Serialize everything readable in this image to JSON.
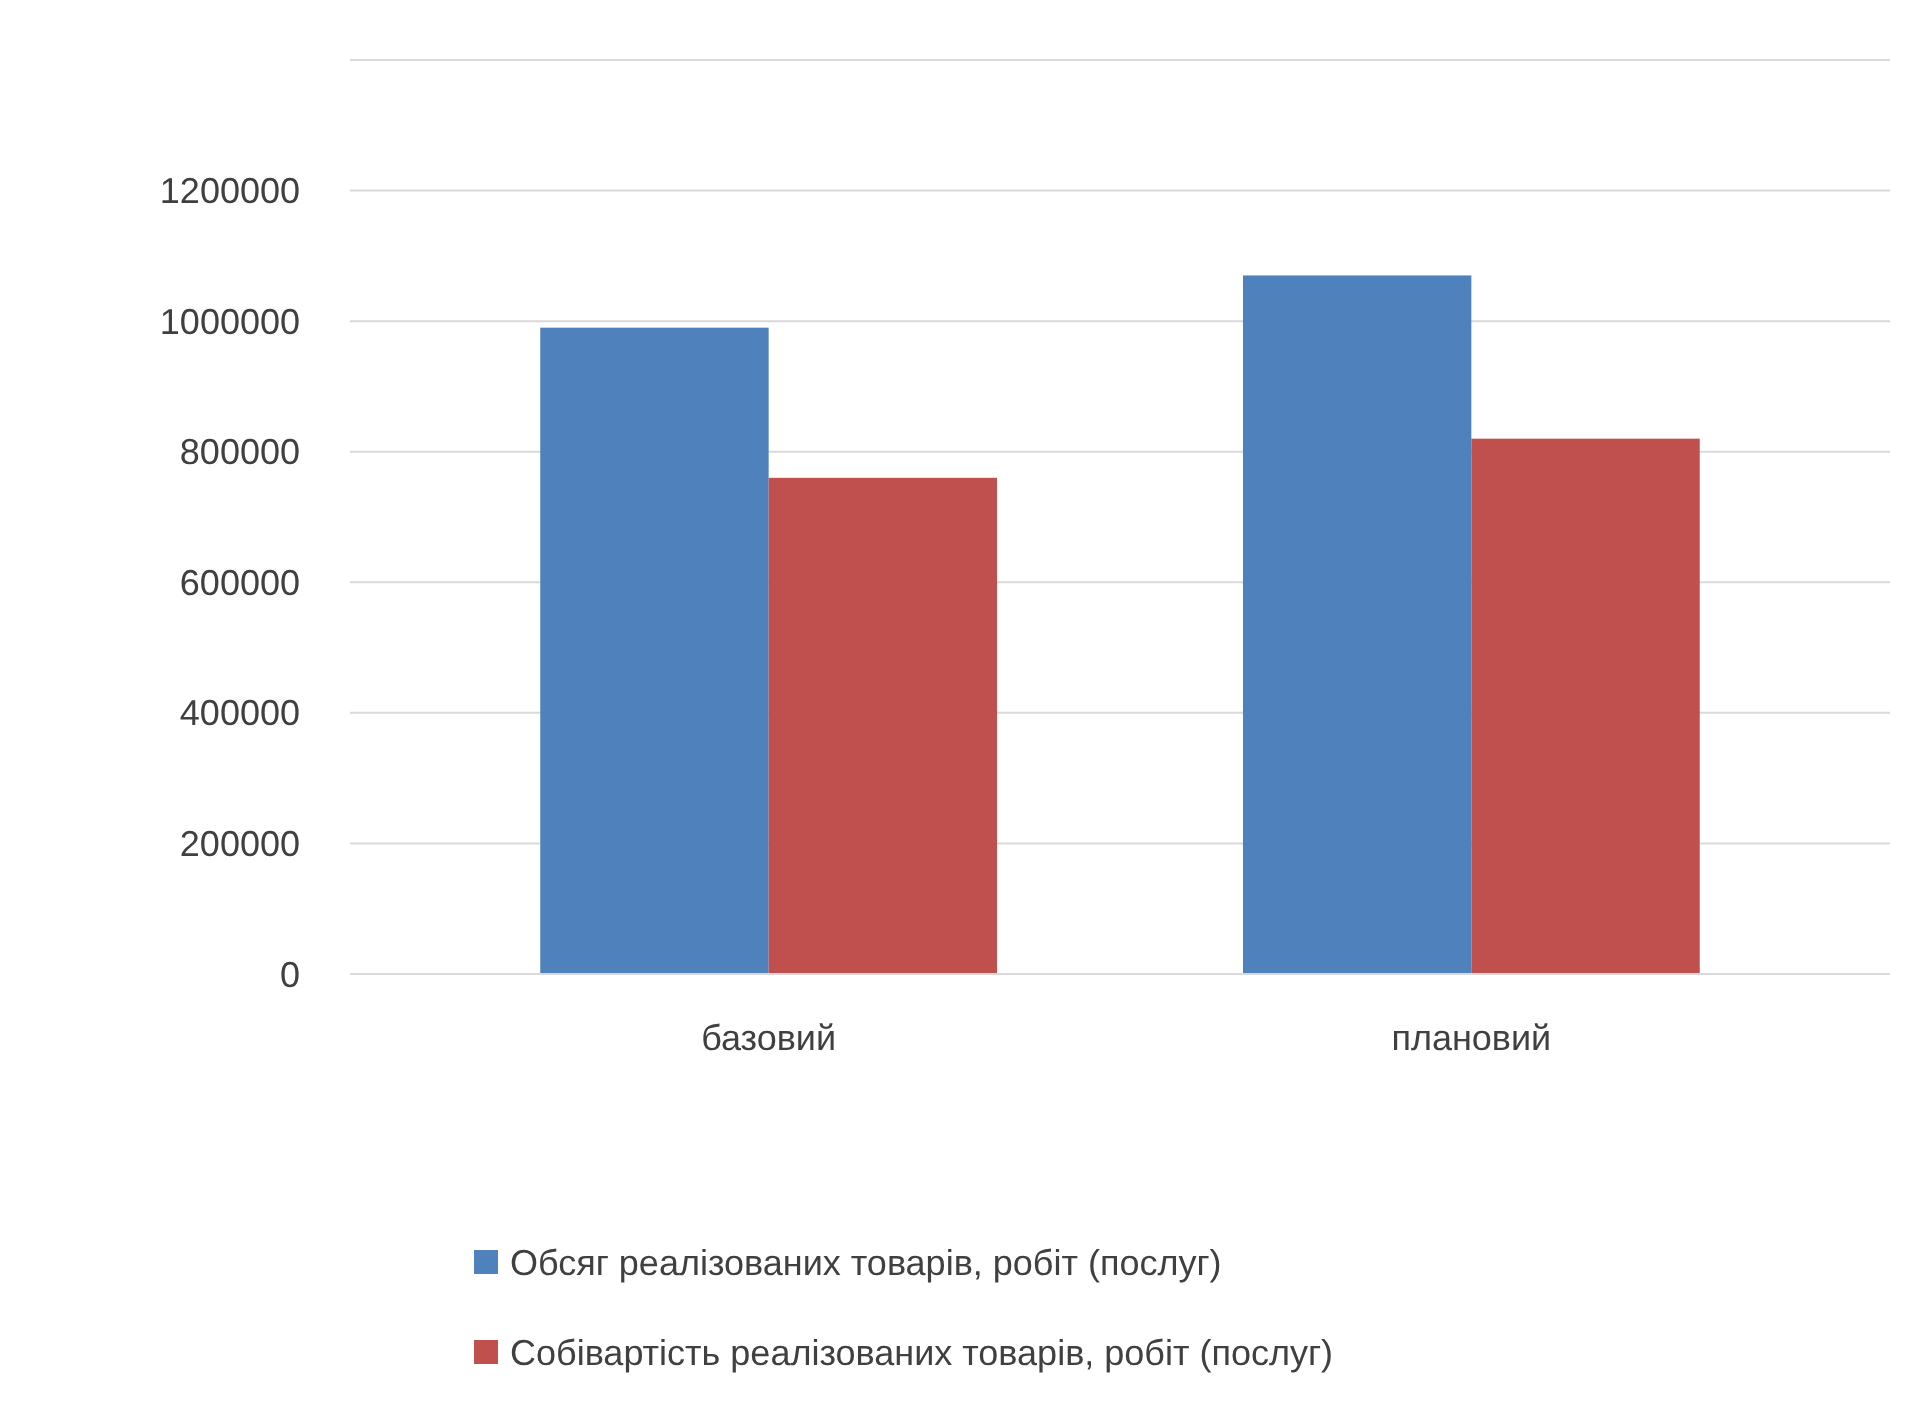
{
  "chart_data": {
    "type": "bar",
    "categories": [
      "базовий",
      "плановий"
    ],
    "series": [
      {
        "name": "Обсяг реалізованих товарів, робіт (послуг)",
        "color": "#4f81bd",
        "values": [
          990000,
          1070000
        ]
      },
      {
        "name": "Собівартість реалізованих товарів, робіт (послуг)",
        "color": "#c0504d",
        "values": [
          760000,
          820000
        ]
      }
    ],
    "ylim": [
      0,
      1400000
    ],
    "yticks": [
      0,
      200000,
      400000,
      600000,
      800000,
      1000000,
      1200000,
      {
        "value": 1400000,
        "label": null
      }
    ],
    "grid": "y",
    "legend": "bottom"
  }
}
